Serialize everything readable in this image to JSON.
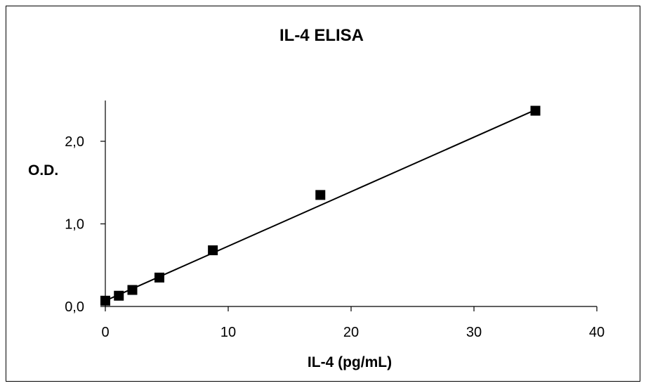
{
  "chart_data": {
    "type": "scatter",
    "title": "IL-4 ELISA",
    "xlabel": "IL-4 (pg/mL)",
    "ylabel": "O.D.",
    "xlim": [
      0,
      40
    ],
    "ylim": [
      0,
      2.5
    ],
    "x_ticks": [
      0,
      10,
      20,
      30,
      40
    ],
    "x_tick_labels": [
      "0",
      "10",
      "20",
      "30",
      "40"
    ],
    "y_ticks": [
      0,
      1,
      2
    ],
    "y_tick_labels": [
      "0,0",
      "1,0",
      "2,0"
    ],
    "grid": false,
    "legend": "none",
    "marker": "square",
    "series": [
      {
        "x": [
          0,
          1.1,
          2.2,
          4.4,
          8.75,
          17.5,
          35
        ],
        "y": [
          0.07,
          0.13,
          0.2,
          0.35,
          0.68,
          1.35,
          2.37
        ]
      }
    ],
    "trendline": {
      "type": "linear",
      "x": [
        0,
        35
      ],
      "y": [
        0.07,
        2.38
      ]
    }
  }
}
